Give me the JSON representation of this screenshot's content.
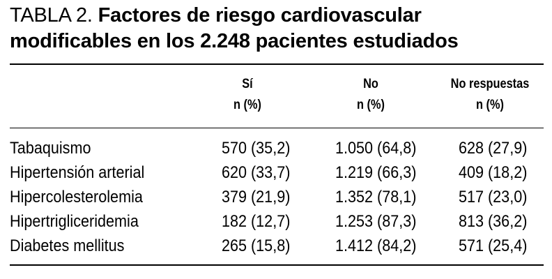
{
  "table": {
    "title_prefix": "TABLA 2.",
    "title_caption": "Factores de riesgo cardiovascular modificables en los 2.248 pacientes estudiados",
    "columns": [
      {
        "line1": "Sí",
        "line2": "n (%)"
      },
      {
        "line1": "No",
        "line2": "n (%)"
      },
      {
        "line1": "No respuestas",
        "line2": "n (%)"
      }
    ],
    "rows": [
      {
        "label": "Tabaquismo",
        "si": "570 (35,2)",
        "no": "1.050 (64,8)",
        "no_respuestas": "628 (27,9)"
      },
      {
        "label": "Hipertensión arterial",
        "si": "620 (33,7)",
        "no": "1.219 (66,3)",
        "no_respuestas": "409 (18,2)"
      },
      {
        "label": "Hipercolesterolemia",
        "si": "379 (21,9)",
        "no": "1.352 (78,1)",
        "no_respuestas": "517 (23,0)"
      },
      {
        "label": "Hipertrigliceridemia",
        "si": "182 (12,7)",
        "no": "1.253 (87,3)",
        "no_respuestas": "813 (36,2)"
      },
      {
        "label": "Diabetes mellitus",
        "si": "265 (15,8)",
        "no": "1.412 (84,2)",
        "no_respuestas": "571 (25,4)"
      }
    ]
  }
}
